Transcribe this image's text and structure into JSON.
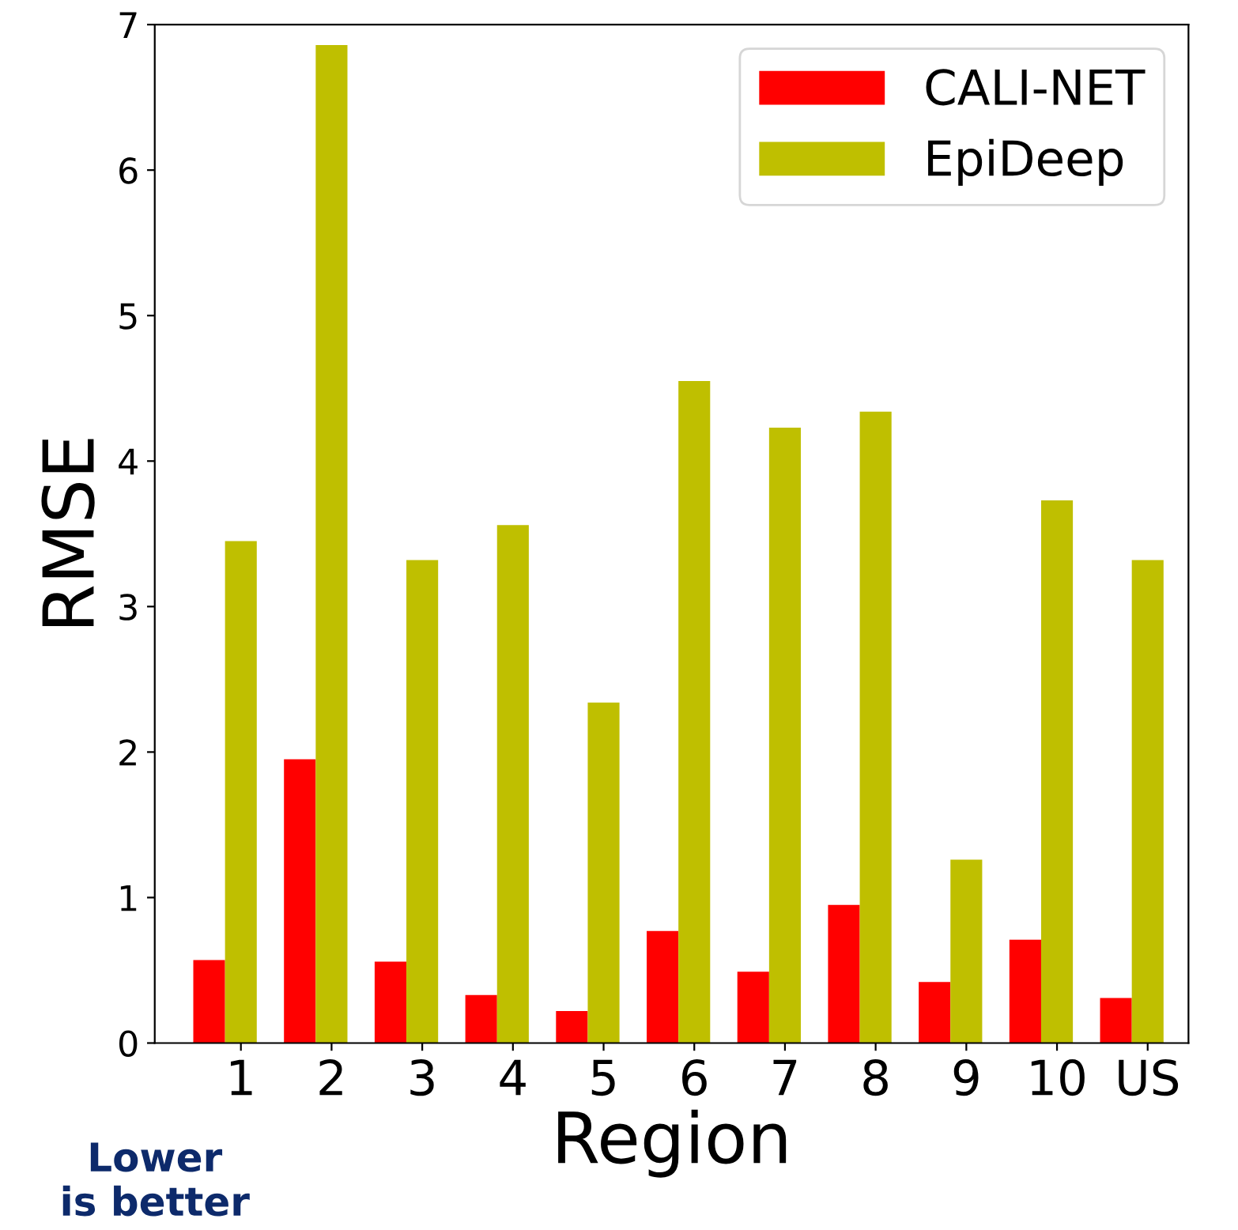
{
  "chart_data": {
    "type": "bar",
    "xlabel": "Region",
    "ylabel": "RMSE",
    "categories": [
      "1",
      "2",
      "3",
      "4",
      "5",
      "6",
      "7",
      "8",
      "9",
      "10",
      "US"
    ],
    "series": [
      {
        "name": "CALI-NET",
        "color": "#ff0000",
        "values": [
          0.57,
          1.95,
          0.56,
          0.33,
          0.22,
          0.77,
          0.49,
          0.95,
          0.42,
          0.71,
          0.31
        ]
      },
      {
        "name": "EpiDeep",
        "color": "#bfbf00",
        "values": [
          3.45,
          6.86,
          3.32,
          3.56,
          2.34,
          4.55,
          4.23,
          4.34,
          1.26,
          3.73,
          3.32
        ]
      }
    ],
    "ylim": [
      0,
      7
    ],
    "yticks": [
      0,
      1,
      2,
      3,
      4,
      5,
      6,
      7
    ],
    "legend": "top right",
    "grid": false,
    "annotations": [
      "Lower\nis better"
    ]
  }
}
